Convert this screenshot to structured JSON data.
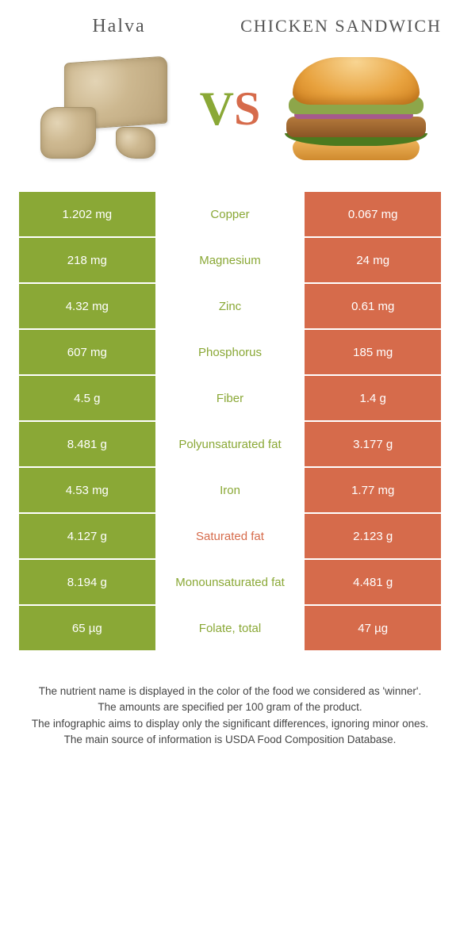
{
  "colors": {
    "left": "#8aa836",
    "right": "#d66b4b",
    "nutrient_left_text": "#8aa836",
    "nutrient_right_text": "#d66b4b"
  },
  "header": {
    "left_title": "Halva",
    "right_title": "CHICKEN SANDWICH",
    "vs_v": "V",
    "vs_s": "S"
  },
  "rows": [
    {
      "left": "1.202 mg",
      "nutrient": "Copper",
      "right": "0.067 mg",
      "winner": "left"
    },
    {
      "left": "218 mg",
      "nutrient": "Magnesium",
      "right": "24 mg",
      "winner": "left"
    },
    {
      "left": "4.32 mg",
      "nutrient": "Zinc",
      "right": "0.61 mg",
      "winner": "left"
    },
    {
      "left": "607 mg",
      "nutrient": "Phosphorus",
      "right": "185 mg",
      "winner": "left"
    },
    {
      "left": "4.5 g",
      "nutrient": "Fiber",
      "right": "1.4 g",
      "winner": "left"
    },
    {
      "left": "8.481 g",
      "nutrient": "Polyunsaturated fat",
      "right": "3.177 g",
      "winner": "left"
    },
    {
      "left": "4.53 mg",
      "nutrient": "Iron",
      "right": "1.77 mg",
      "winner": "left"
    },
    {
      "left": "4.127 g",
      "nutrient": "Saturated fat",
      "right": "2.123 g",
      "winner": "right"
    },
    {
      "left": "8.194 g",
      "nutrient": "Monounsaturated fat",
      "right": "4.481 g",
      "winner": "left"
    },
    {
      "left": "65 µg",
      "nutrient": "Folate, total",
      "right": "47 µg",
      "winner": "left"
    }
  ],
  "notes": [
    "The nutrient name is displayed in the color of the food we considered as 'winner'.",
    "The amounts are specified per 100 gram of the product.",
    "The infographic aims to display only the significant differences, ignoring minor ones.",
    "The main source of information is USDA Food Composition Database."
  ]
}
